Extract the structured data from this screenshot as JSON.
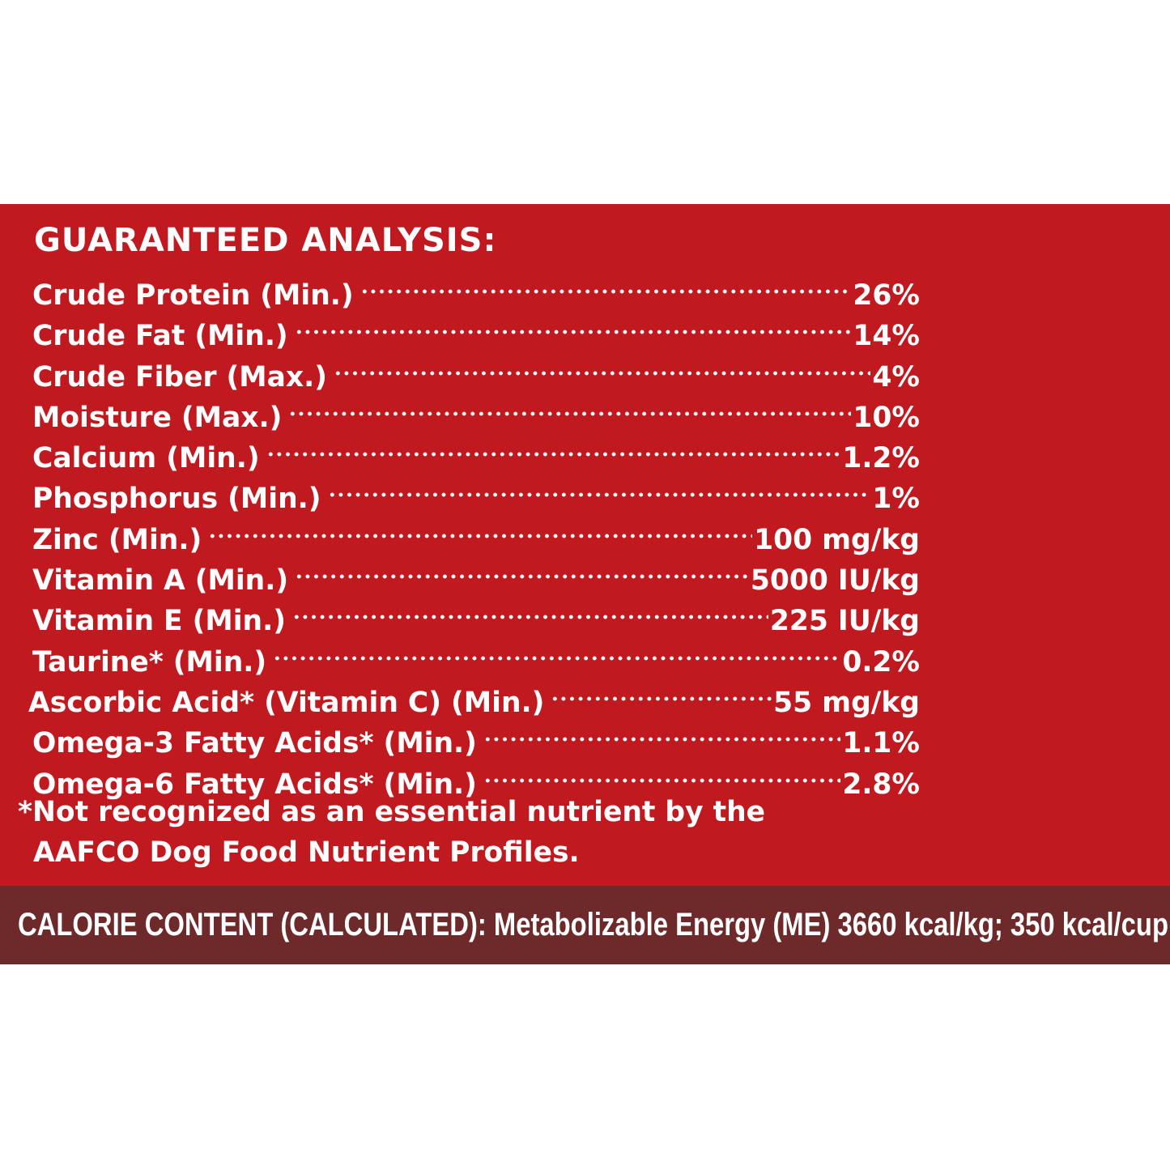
{
  "colors": {
    "panel_red": "#c0191f",
    "calorie_bar": "#6e2a2a",
    "text": "#ffffff",
    "background": "#ffffff"
  },
  "analysis": {
    "title": "GUARANTEED ANALYSIS:",
    "rows": [
      {
        "label": "Crude Protein (Min.)",
        "value": "26%"
      },
      {
        "label": "Crude Fat (Min.)",
        "value": "14%"
      },
      {
        "label": "Crude Fiber (Max.)",
        "value": "4%"
      },
      {
        "label": "Moisture (Max.)",
        "value": "10%"
      },
      {
        "label": "Calcium (Min.)",
        "value": "1.2%"
      },
      {
        "label": "Phosphorus (Min.)",
        "value": "1%"
      },
      {
        "label": "Zinc (Min.)",
        "value": "100 mg/kg"
      },
      {
        "label": "Vitamin A (Min.)",
        "value": "5000 IU/kg"
      },
      {
        "label": "Vitamin E (Min.)",
        "value": "225 IU/kg"
      },
      {
        "label": "Taurine* (Min.)",
        "value": "0.2%"
      },
      {
        "label": "Ascorbic Acid* (Vitamin C) (Min.)",
        "value": "55 mg/kg"
      },
      {
        "label": "Omega-3 Fatty Acids* (Min.)",
        "value": "1.1%"
      },
      {
        "label": "Omega-6 Fatty Acids* (Min.)",
        "value": "2.8%"
      }
    ],
    "footnote_line1": "*Not recognized as an essential nutrient by the",
    "footnote_line2": "AAFCO Dog Food Nutrient Profiles."
  },
  "calorie": {
    "text": "CALORIE CONTENT (CALCULATED): Metabolizable Energy (ME) 3660 kcal/kg; 350 kcal/cup"
  }
}
